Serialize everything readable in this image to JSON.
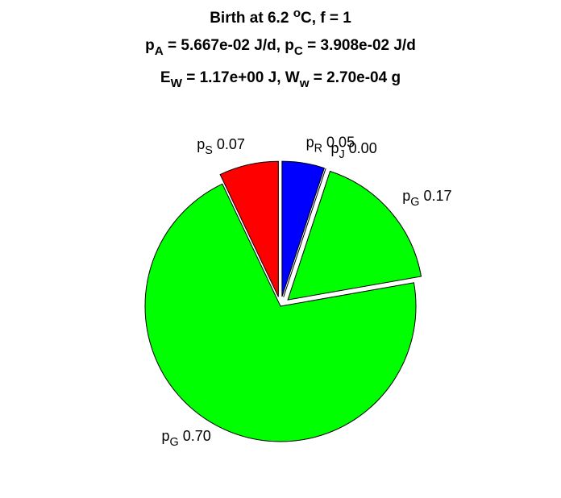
{
  "chart_data": {
    "type": "pie",
    "title": [
      [
        "Birth at 6.2 ",
        {
          "sup": "o"
        },
        "C, f = 1"
      ],
      [
        "p",
        {
          "sub": "A"
        },
        " = 5.667e-02 J/d, p",
        {
          "sub": "C"
        },
        " = 3.908e-02 J/d"
      ],
      [
        "E",
        {
          "sub": "W"
        },
        " = 1.17e+00 J, W",
        {
          "sub": "w"
        },
        " = 2.70e-04 g"
      ]
    ],
    "categories": [
      [
        "p",
        {
          "sub": "R"
        }
      ],
      [
        "p",
        {
          "sub": "J"
        }
      ],
      [
        "p",
        {
          "sub": "G"
        }
      ],
      [
        "p",
        {
          "sub": "G"
        }
      ],
      [
        "p",
        {
          "sub": "S"
        }
      ]
    ],
    "values": [
      0.05,
      0,
      0.17,
      0.7,
      0.07
    ],
    "value_labels": [
      "0.05",
      "0.00",
      "0.17",
      "0.70",
      "0.07"
    ],
    "colors": [
      "#0000ff",
      "#00ffff",
      "#00ff00",
      "#00ff00",
      "#ff0000"
    ],
    "explode": [
      true,
      true,
      true,
      false,
      true
    ]
  }
}
